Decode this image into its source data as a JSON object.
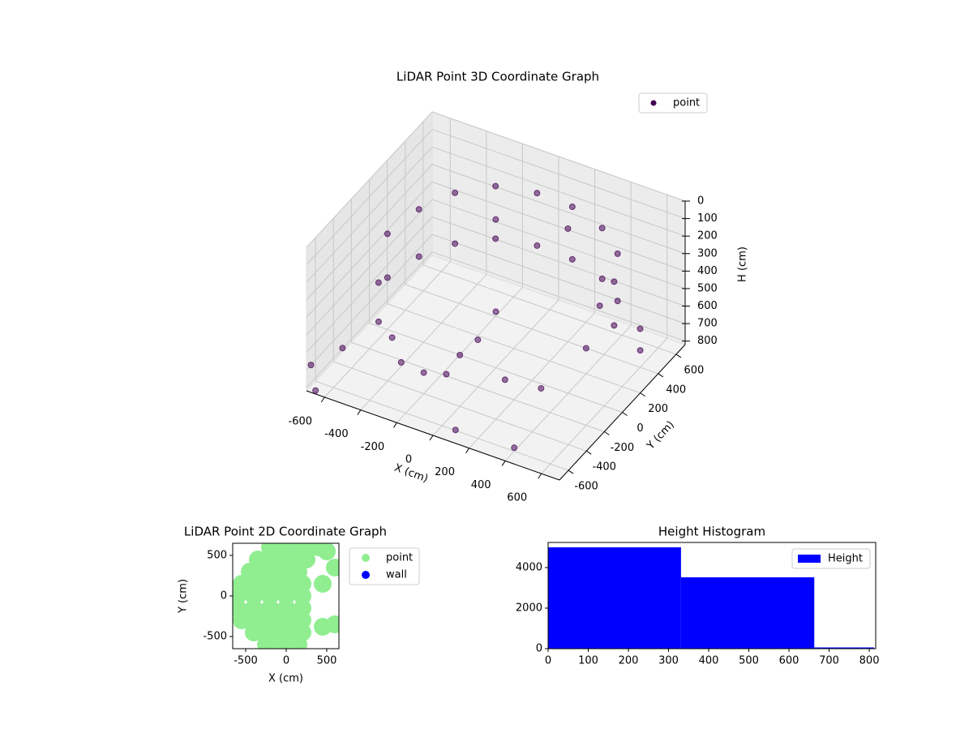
{
  "chart_data": [
    {
      "type": "scatter3d",
      "title": "LiDAR Point 3D Coordinate Graph",
      "xlabel": "X (cm)",
      "ylabel": "Y (cm)",
      "zlabel": "H (cm)",
      "xlim": [
        -700,
        700
      ],
      "ylim": [
        -700,
        700
      ],
      "zlim": [
        0,
        820
      ],
      "xticks": [
        -600,
        -400,
        -200,
        0,
        200,
        400,
        600
      ],
      "yticks": [
        -600,
        -400,
        -200,
        0,
        200,
        400,
        600
      ],
      "zticks": [
        0,
        100,
        200,
        300,
        400,
        500,
        600,
        700,
        800
      ],
      "z_inverted": true,
      "grid": true,
      "legend": "upper right",
      "series": [
        {
          "name": "point",
          "color": "#440154",
          "x": [
            -550,
            -500,
            -400,
            -250,
            -50,
            150,
            350,
            500,
            580,
            600,
            -550,
            -500,
            -400,
            -250,
            -50,
            150,
            350,
            500,
            580,
            -500,
            -450,
            -400,
            -300,
            -200,
            -100,
            -50,
            0,
            -700,
            -650,
            -600,
            200,
            350,
            400,
            450,
            600,
            650,
            100,
            -100,
            250,
            0
          ],
          "y": [
            -100,
            150,
            350,
            500,
            560,
            550,
            480,
            350,
            150,
            -50,
            -100,
            150,
            350,
            500,
            560,
            550,
            480,
            350,
            150,
            -300,
            -400,
            -350,
            -450,
            -400,
            -350,
            -300,
            -200,
            -650,
            -700,
            -500,
            -300,
            -200,
            -600,
            100,
            400,
            300,
            -650,
            200,
            300,
            0
          ],
          "z": [
            200,
            180,
            160,
            150,
            150,
            150,
            160,
            180,
            200,
            220,
            450,
            450,
            450,
            450,
            450,
            450,
            450,
            450,
            450,
            350,
            500,
            600,
            650,
            700,
            700,
            600,
            550,
            700,
            800,
            650,
            650,
            700,
            800,
            600,
            600,
            650,
            780,
            120,
            100,
            500
          ]
        }
      ]
    },
    {
      "type": "scatter",
      "title": "LiDAR Point 2D Coordinate Graph",
      "xlabel": "X (cm)",
      "ylabel": "Y (cm)",
      "xlim": [
        -660,
        650
      ],
      "ylim": [
        -650,
        650
      ],
      "xticks": [
        -500,
        0,
        500
      ],
      "yticks": [
        -500,
        0,
        500
      ],
      "legend": "outside upper right",
      "series": [
        {
          "name": "point",
          "color": "#90ee90",
          "x": [
            -200,
            0,
            200,
            400,
            -350,
            -150,
            50,
            250,
            -450,
            -250,
            -50,
            150,
            -550,
            -350,
            -150,
            50,
            200,
            -600,
            -400,
            -200,
            0,
            200,
            -600,
            -400,
            -200,
            0,
            200,
            -550,
            -350,
            -150,
            50,
            200,
            -400,
            -200,
            0,
            200,
            -250,
            -50,
            150,
            500,
            600,
            450,
            600,
            450
          ],
          "y": [
            600,
            600,
            600,
            600,
            450,
            450,
            450,
            450,
            300,
            300,
            300,
            300,
            150,
            150,
            150,
            150,
            150,
            0,
            0,
            0,
            0,
            0,
            -150,
            -150,
            -150,
            -150,
            -150,
            -300,
            -300,
            -300,
            -300,
            -300,
            -450,
            -450,
            -450,
            -450,
            -600,
            -600,
            -600,
            550,
            350,
            150,
            -350,
            -380
          ]
        },
        {
          "name": "wall",
          "color": "#0000ff",
          "x": [],
          "y": []
        }
      ]
    },
    {
      "type": "histogram",
      "title": "Height Histogram",
      "bins": [
        0,
        331,
        663,
        812
      ],
      "xlim": [
        0,
        816
      ],
      "ylim": [
        0,
        5240
      ],
      "xticks": [
        0,
        100,
        200,
        300,
        400,
        500,
        600,
        700,
        800
      ],
      "yticks": [
        0,
        2000,
        4000
      ],
      "legend": "upper right",
      "series": [
        {
          "name": "Height",
          "color": "#0000ff",
          "values": [
            5000,
            3520,
            60
          ]
        }
      ]
    }
  ]
}
